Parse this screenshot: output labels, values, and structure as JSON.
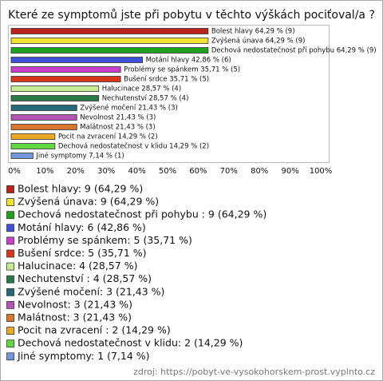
{
  "chart_data": {
    "type": "bar",
    "orientation": "horizontal",
    "title": "Které ze symptomů jste při pobytu v těchto výškách pociťoval/a ?",
    "categories": [
      "Bolest hlavy",
      "Zvýšená únava",
      "Dechová nedostatečnost při pohybu",
      "Motání hlavy",
      "Problémy se spánkem",
      "Bušení srdce",
      "Halucinace",
      "Nechutenství",
      "Zvýšené močení",
      "Nevolnost",
      "Malátnost",
      "Pocit na zvracení",
      "Dechová nedostatečnost v klidu",
      "Jiné symptomy"
    ],
    "values": [
      64.29,
      64.29,
      64.29,
      42.86,
      35.71,
      35.71,
      28.57,
      28.57,
      21.43,
      21.43,
      21.43,
      14.29,
      14.29,
      7.14
    ],
    "value_labels": [
      "Bolest hlavy 64,29 % (9)",
      "Zvýšená únava 64,29 % (9)",
      "Dechová nedostatečnost při pohybu  64,29 % (9)",
      "Motání hlavy 42,86 % (6)",
      "Problémy se spánkem 35,71 % (5)",
      "Bušení srdce 35,71 % (5)",
      "Halucinace 28,57 % (4)",
      "Nechutenství  28,57 % (4)",
      "Zvýšené močení 21,43 % (3)",
      "Nevolnost 21,43 % (3)",
      "Malátnost 21,43 % (3)",
      "Pocit na zvracení  14,29 % (2)",
      "Dechová nedostatečnost v klidu 14,29 % (2)",
      "Jiné symptomy 7,14 % (1)"
    ],
    "legend_labels": [
      "Bolest hlavy: 9 (64,29 %)",
      "Zvýšená únava: 9 (64,29 %)",
      "Dechová nedostatečnost při pohybu : 9 (64,29 %)",
      "Motání hlavy: 6 (42,86 %)",
      "Problémy se spánkem: 5 (35,71 %)",
      "Bušení srdce: 5 (35,71 %)",
      "Halucinace: 4 (28,57 %)",
      "Nechutenství : 4 (28,57 %)",
      "Zvýšené močení: 3 (21,43 %)",
      "Nevolnost: 3 (21,43 %)",
      "Malátnost: 3 (21,43 %)",
      "Pocit na zvracení : 2 (14,29 %)",
      "Dechová nedostatečnost v klidu: 2 (14,29 %)",
      "Jiné symptomy: 1 (7,14 %)"
    ],
    "colors": [
      "#b8231c",
      "#f2e330",
      "#1fa31f",
      "#4050d8",
      "#c93fc9",
      "#d9361a",
      "#c8eb96",
      "#2a7a47",
      "#24697a",
      "#b455b4",
      "#d9762e",
      "#eba824",
      "#62d842",
      "#7396dc"
    ],
    "xlim": [
      0,
      100
    ],
    "xticks": [
      {
        "value": 0,
        "label": "0%"
      },
      {
        "value": 10,
        "label": "10%"
      },
      {
        "value": 20,
        "label": "20%"
      },
      {
        "value": 30,
        "label": "30%"
      },
      {
        "value": 40,
        "label": "40%"
      },
      {
        "value": 50,
        "label": "50%"
      },
      {
        "value": 60,
        "label": "60%"
      },
      {
        "value": 70,
        "label": "70%"
      },
      {
        "value": 80,
        "label": "80%"
      },
      {
        "value": 90,
        "label": "90%"
      },
      {
        "value": 100,
        "label": "100%"
      }
    ],
    "source": "zdroj:  https://pobyt-ve-vysokohorskem-prost.vyplnto.cz"
  }
}
